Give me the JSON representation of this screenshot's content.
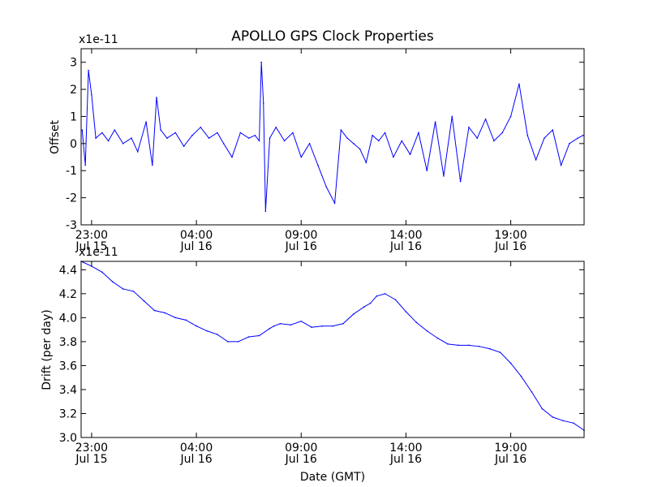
{
  "title": "APOLLO GPS Clock Properties",
  "chart_data": [
    {
      "type": "line",
      "title": "APOLLO GPS Clock Properties",
      "ylabel": "Offset",
      "xlabel": "",
      "y_multiplier": "x1e-11",
      "y_scale": 1e-11,
      "ylim": [
        -3,
        3.5
      ],
      "yticks": [
        "-3",
        "-2",
        "-1",
        "0",
        "1",
        "2",
        "3"
      ],
      "xlim": [
        22.5,
        46.5
      ],
      "xticks": [
        {
          "time": "23:00",
          "date": "Jul 15"
        },
        {
          "time": "04:00",
          "date": "Jul 16"
        },
        {
          "time": "09:00",
          "date": "Jul 16"
        },
        {
          "time": "14:00",
          "date": "Jul 16"
        },
        {
          "time": "19:00",
          "date": "Jul 16"
        }
      ],
      "x_unit": "hours since 00:00 Jul 15 (GMT)",
      "line_color": "#0000ff",
      "grid": false,
      "series": [
        {
          "x": [
            22.55,
            22.7,
            22.85,
            23.0,
            23.2,
            23.5,
            23.8,
            24.1,
            24.5,
            24.9,
            25.2,
            25.6,
            25.9,
            26.1,
            26.3,
            26.6,
            27.0,
            27.4,
            27.8,
            28.2,
            28.6,
            29.0,
            29.3,
            29.7,
            30.1,
            30.5,
            30.8,
            31.0,
            31.1,
            31.2,
            31.3,
            31.5,
            31.8,
            32.2,
            32.6,
            33.0,
            33.4,
            33.8,
            34.2,
            34.6,
            34.9,
            35.2,
            35.5,
            35.8,
            36.1,
            36.4,
            36.7,
            37.0,
            37.4,
            37.8,
            38.2,
            38.6,
            39.0,
            39.4,
            39.8,
            40.2,
            40.6,
            41.0,
            41.4,
            41.8,
            42.2,
            42.6,
            43.0,
            43.4,
            43.8,
            44.2,
            44.6,
            45.0,
            45.4,
            45.8,
            46.2,
            46.45
          ],
          "y": [
            0.5,
            -0.8,
            2.7,
            1.8,
            0.2,
            0.4,
            0.1,
            0.5,
            0.0,
            0.2,
            -0.3,
            0.8,
            -0.8,
            1.7,
            0.5,
            0.2,
            0.4,
            -0.1,
            0.3,
            0.6,
            0.2,
            0.4,
            0.0,
            -0.5,
            0.4,
            0.2,
            0.3,
            0.1,
            3.0,
            1.5,
            -2.5,
            0.2,
            0.6,
            0.1,
            0.4,
            -0.5,
            0.0,
            -0.8,
            -1.6,
            -2.2,
            0.5,
            0.2,
            0.0,
            -0.2,
            -0.7,
            0.3,
            0.1,
            0.4,
            -0.5,
            0.1,
            -0.4,
            0.4,
            -1.0,
            0.8,
            -1.2,
            1.0,
            -1.4,
            0.6,
            0.2,
            0.9,
            0.1,
            0.4,
            1.0,
            2.2,
            0.3,
            -0.6,
            0.2,
            0.5,
            -0.8,
            0.0,
            0.2,
            0.3
          ]
        }
      ]
    },
    {
      "type": "line",
      "title": "",
      "ylabel": "Drift (per day)",
      "xlabel": "Date (GMT)",
      "y_multiplier": "x1e-11",
      "y_scale": 1e-11,
      "ylim": [
        3.0,
        4.47
      ],
      "yticks": [
        "3.0",
        "3.2",
        "3.4",
        "3.6",
        "3.8",
        "4.0",
        "4.2",
        "4.4"
      ],
      "xlim": [
        22.5,
        46.5
      ],
      "xticks": [
        {
          "time": "23:00",
          "date": "Jul 15"
        },
        {
          "time": "04:00",
          "date": "Jul 16"
        },
        {
          "time": "09:00",
          "date": "Jul 16"
        },
        {
          "time": "14:00",
          "date": "Jul 16"
        },
        {
          "time": "19:00",
          "date": "Jul 16"
        }
      ],
      "x_unit": "hours since 00:00 Jul 15 (GMT)",
      "line_color": "#0000ff",
      "grid": false,
      "series": [
        {
          "x": [
            22.5,
            23.0,
            23.5,
            24.0,
            24.5,
            25.0,
            25.5,
            26.0,
            26.5,
            27.0,
            27.5,
            28.0,
            28.5,
            29.0,
            29.5,
            30.0,
            30.5,
            31.0,
            31.5,
            31.7,
            32.0,
            32.5,
            33.0,
            33.5,
            34.0,
            34.5,
            35.0,
            35.5,
            36.0,
            36.3,
            36.6,
            37.0,
            37.5,
            38.0,
            38.5,
            39.0,
            39.5,
            40.0,
            40.5,
            41.0,
            41.5,
            42.0,
            42.5,
            43.0,
            43.5,
            44.0,
            44.5,
            45.0,
            45.5,
            46.0,
            46.5
          ],
          "y": [
            4.47,
            4.43,
            4.38,
            4.3,
            4.24,
            4.22,
            4.14,
            4.06,
            4.04,
            4.0,
            3.98,
            3.93,
            3.89,
            3.86,
            3.8,
            3.8,
            3.84,
            3.85,
            3.91,
            3.93,
            3.95,
            3.94,
            3.97,
            3.92,
            3.93,
            3.93,
            3.95,
            4.03,
            4.09,
            4.12,
            4.18,
            4.2,
            4.15,
            4.05,
            3.96,
            3.89,
            3.83,
            3.78,
            3.77,
            3.77,
            3.76,
            3.74,
            3.71,
            3.62,
            3.51,
            3.38,
            3.24,
            3.17,
            3.14,
            3.12,
            3.06
          ]
        }
      ]
    }
  ]
}
